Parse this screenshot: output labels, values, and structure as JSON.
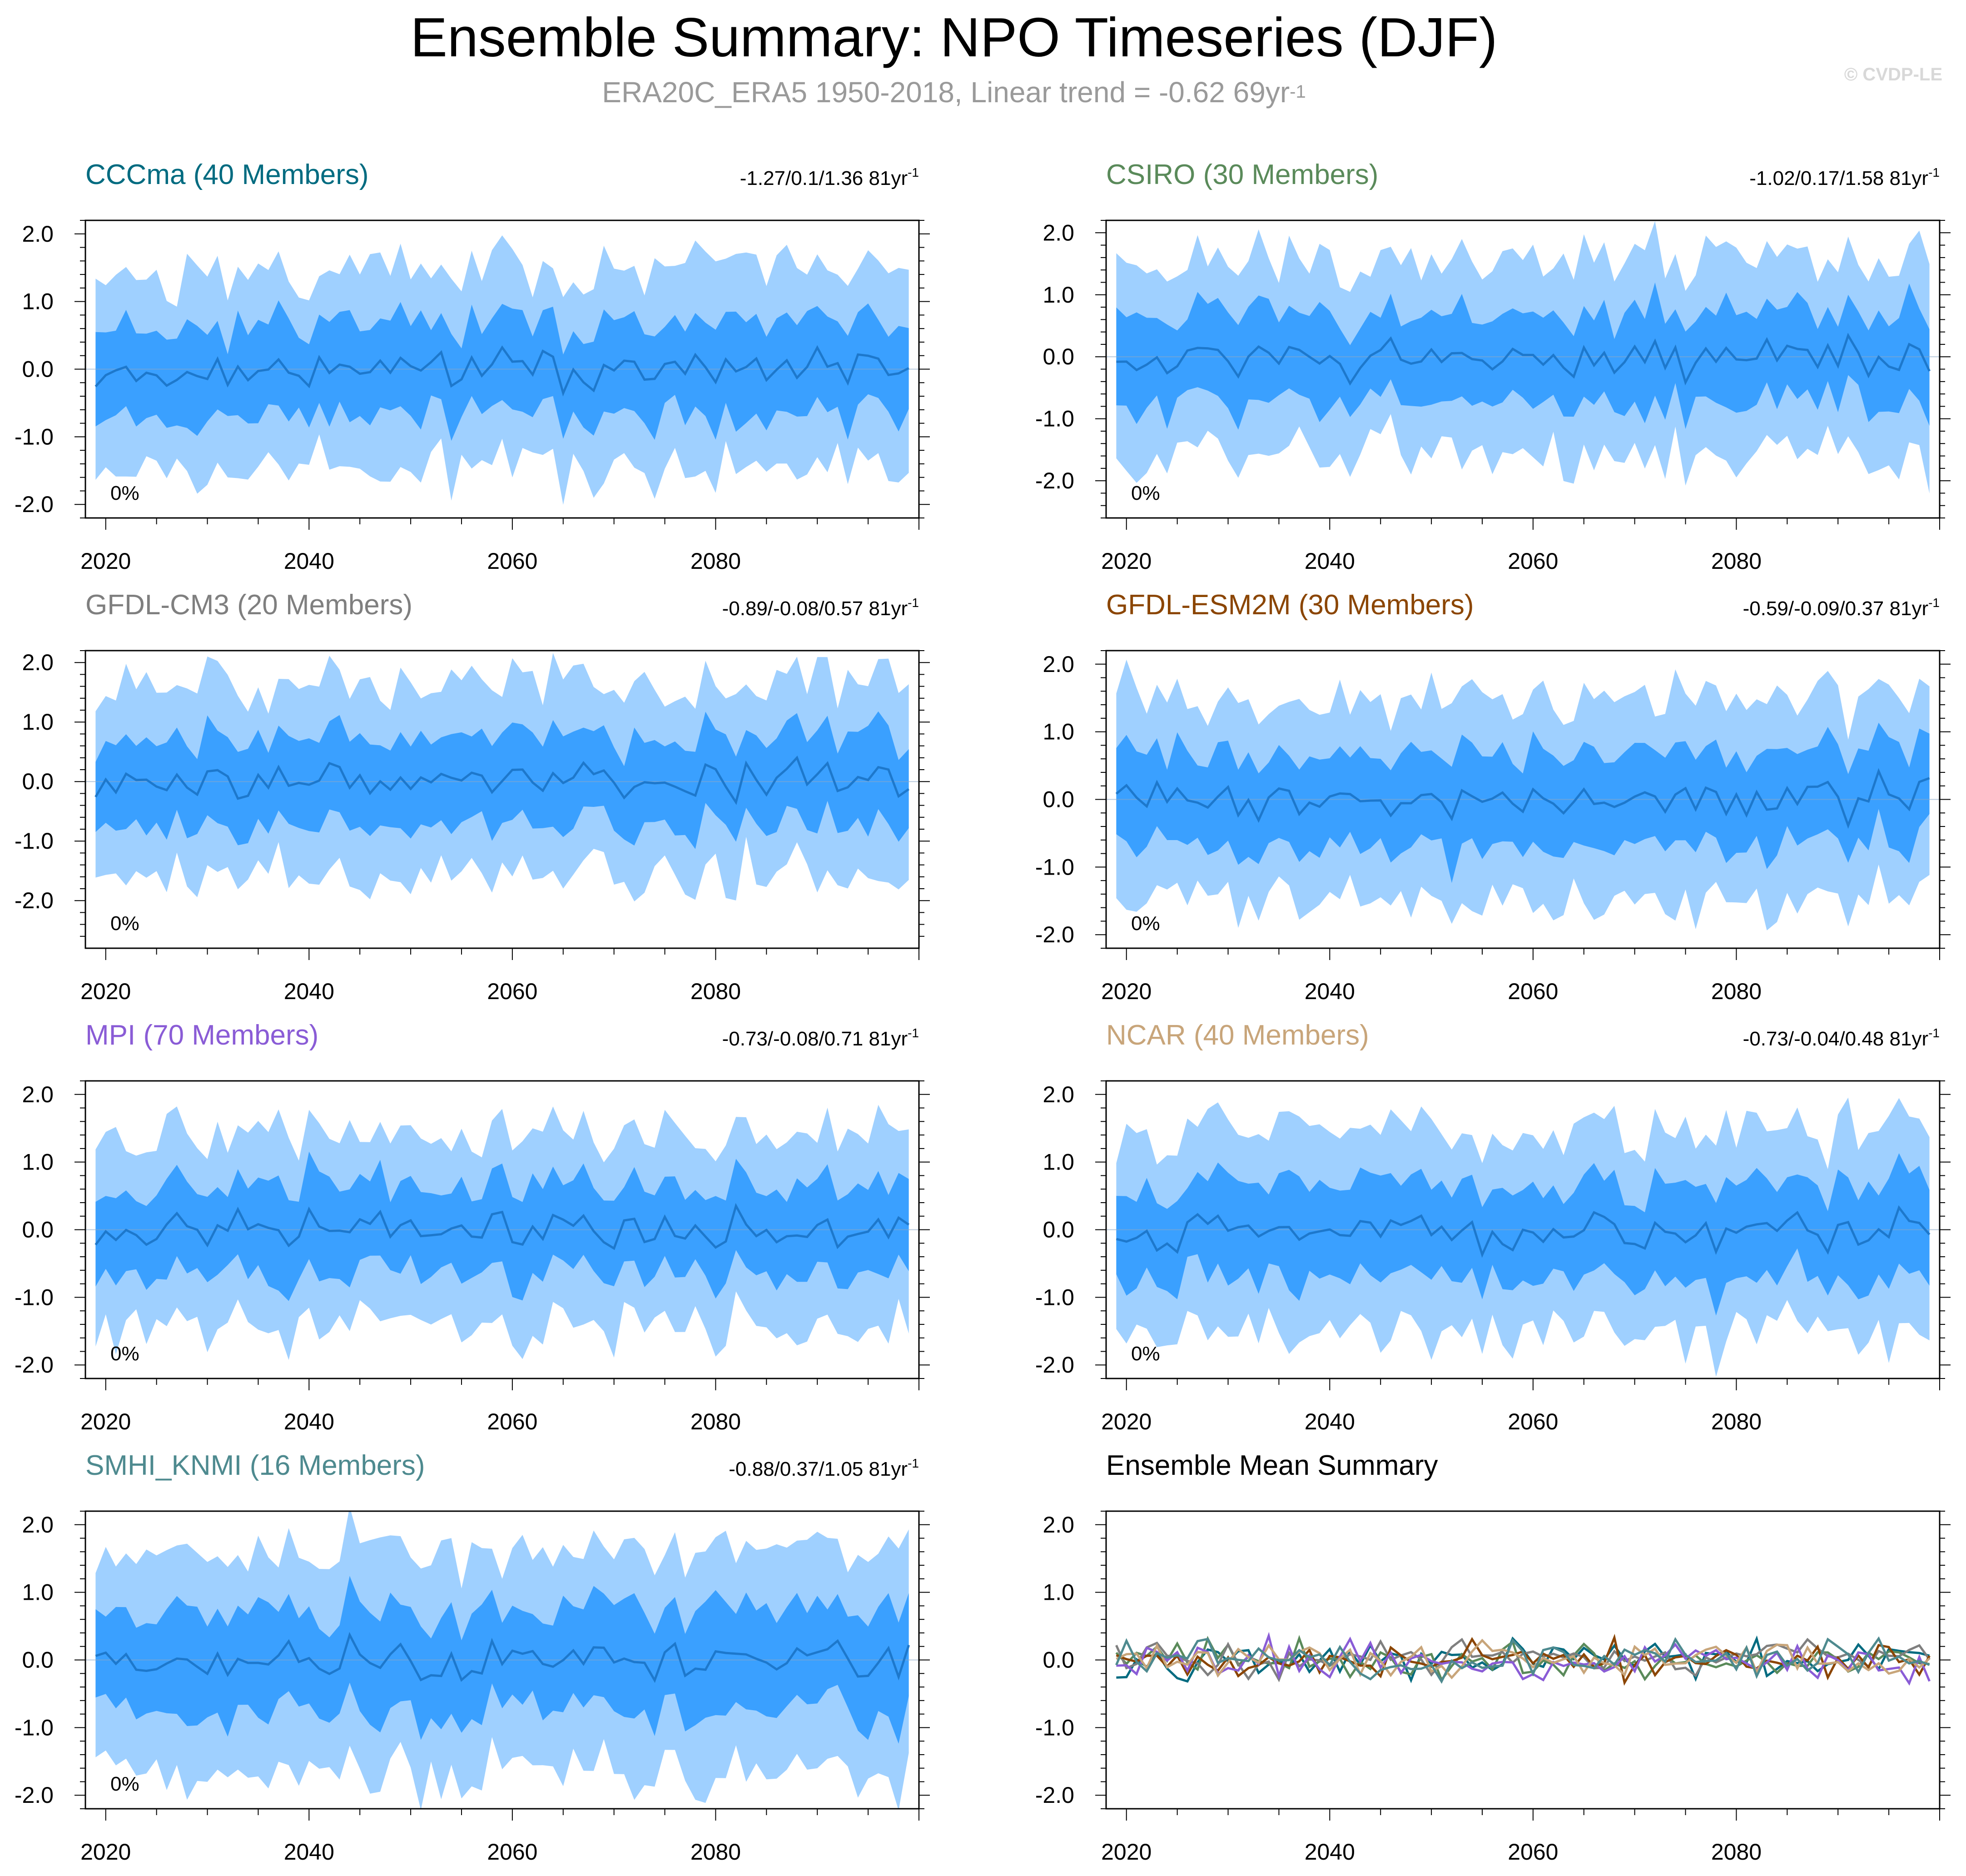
{
  "header": {
    "title": "Ensemble Summary: NPO Timeseries (DJF)",
    "subtitle_prefix": "ERA20C_ERA5 1950-2018, Linear trend = -0.62 69yr",
    "subtitle_sup": "-1",
    "copyright": "© CVDP-LE"
  },
  "chart_data": [
    {
      "type": "area",
      "title": "CCCma (40 Members)",
      "title_color": "#006b80",
      "trend_text": "-1.27/0.1/1.36 81yr",
      "trend_sup": "-1",
      "annotation": "0%",
      "xlim": [
        2018,
        2100
      ],
      "ylim": [
        -2.2,
        2.2
      ],
      "xticks": [
        2020,
        2040,
        2060,
        2080
      ],
      "yticks": [
        2.0,
        1.0,
        0.0,
        -1.0,
        -2.0
      ],
      "ytick_labels": [
        "2.0",
        "1.0",
        "0.0",
        "-1.0",
        "-2.0"
      ],
      "seed": 11,
      "scale": 1.0,
      "bands": [
        {
          "name": "min-max range",
          "color": "#9fd0ff"
        },
        {
          "name": "interquartile range",
          "color": "#3aa0ff"
        },
        {
          "name": "ensemble mean",
          "color": "#1d78cc"
        }
      ]
    },
    {
      "type": "area",
      "title": "CSIRO (30 Members)",
      "title_color": "#5a8a5a",
      "trend_text": "-1.02/0.17/1.58 81yr",
      "trend_sup": "-1",
      "annotation": "0%",
      "xlim": [
        2018,
        2100
      ],
      "ylim": [
        -2.6,
        2.2
      ],
      "xticks": [
        2020,
        2040,
        2060,
        2080
      ],
      "yticks": [
        2.0,
        1.0,
        0.0,
        -1.0,
        -2.0
      ],
      "ytick_labels": [
        "2.0",
        "1.0",
        "0.0",
        "-1.0",
        "-2.0"
      ],
      "seed": 23,
      "scale": 1.1,
      "bands": [
        {
          "name": "min-max range",
          "color": "#9fd0ff"
        },
        {
          "name": "interquartile range",
          "color": "#3aa0ff"
        },
        {
          "name": "ensemble mean",
          "color": "#1d78cc"
        }
      ]
    },
    {
      "type": "area",
      "title": "GFDL-CM3 (20 Members)",
      "title_color": "#7f7f7f",
      "trend_text": "-0.89/-0.08/0.57 81yr",
      "trend_sup": "-1",
      "annotation": "0%",
      "xlim": [
        2018,
        2100
      ],
      "ylim": [
        -2.8,
        2.2
      ],
      "xticks": [
        2020,
        2040,
        2060,
        2080
      ],
      "yticks": [
        2.0,
        1.0,
        0.0,
        -1.0,
        -2.0
      ],
      "ytick_labels": [
        "2.0",
        "1.0",
        "0.0",
        "-1.0",
        "-2.0"
      ],
      "seed": 37,
      "scale": 1.15,
      "bands": [
        {
          "name": "min-max range",
          "color": "#9fd0ff"
        },
        {
          "name": "interquartile range",
          "color": "#3aa0ff"
        },
        {
          "name": "ensemble mean",
          "color": "#1d78cc"
        }
      ]
    },
    {
      "type": "area",
      "title": "GFDL-ESM2M (30 Members)",
      "title_color": "#8b4500",
      "trend_text": "-0.59/-0.09/0.37 81yr",
      "trend_sup": "-1",
      "annotation": "0%",
      "xlim": [
        2018,
        2100
      ],
      "ylim": [
        -2.2,
        2.2
      ],
      "xticks": [
        2020,
        2040,
        2060,
        2080
      ],
      "yticks": [
        2.0,
        1.0,
        0.0,
        -1.0,
        -2.0
      ],
      "ytick_labels": [
        "2.0",
        "1.0",
        "0.0",
        "-1.0",
        "-2.0"
      ],
      "seed": 41,
      "scale": 1.05,
      "bands": [
        {
          "name": "min-max range",
          "color": "#9fd0ff"
        },
        {
          "name": "interquartile range",
          "color": "#3aa0ff"
        },
        {
          "name": "ensemble mean",
          "color": "#1d78cc"
        }
      ]
    },
    {
      "type": "area",
      "title": "MPI (70 Members)",
      "title_color": "#8a5cd6",
      "trend_text": "-0.73/-0.08/0.71 81yr",
      "trend_sup": "-1",
      "annotation": "0%",
      "xlim": [
        2018,
        2100
      ],
      "ylim": [
        -2.2,
        2.2
      ],
      "xticks": [
        2020,
        2040,
        2060,
        2080
      ],
      "yticks": [
        2.0,
        1.0,
        0.0,
        -1.0,
        -2.0
      ],
      "ytick_labels": [
        "2.0",
        "1.0",
        "0.0",
        "-1.0",
        "-2.0"
      ],
      "seed": 53,
      "scale": 1.0,
      "bands": [
        {
          "name": "min-max range",
          "color": "#9fd0ff"
        },
        {
          "name": "interquartile range",
          "color": "#3aa0ff"
        },
        {
          "name": "ensemble mean",
          "color": "#1d78cc"
        }
      ]
    },
    {
      "type": "area",
      "title": "NCAR (40 Members)",
      "title_color": "#c8a57a",
      "trend_text": "-0.73/-0.04/0.48 81yr",
      "trend_sup": "-1",
      "annotation": "0%",
      "xlim": [
        2018,
        2100
      ],
      "ylim": [
        -2.2,
        2.2
      ],
      "xticks": [
        2020,
        2040,
        2060,
        2080
      ],
      "yticks": [
        2.0,
        1.0,
        0.0,
        -1.0,
        -2.0
      ],
      "ytick_labels": [
        "2.0",
        "1.0",
        "0.0",
        "-1.0",
        "-2.0"
      ],
      "seed": 67,
      "scale": 1.05,
      "bands": [
        {
          "name": "min-max range",
          "color": "#9fd0ff"
        },
        {
          "name": "interquartile range",
          "color": "#3aa0ff"
        },
        {
          "name": "ensemble mean",
          "color": "#1d78cc"
        }
      ]
    },
    {
      "type": "area",
      "title": "SMHI_KNMI (16 Members)",
      "title_color": "#4e8a8f",
      "trend_text": "-0.88/0.37/1.05 81yr",
      "trend_sup": "-1",
      "annotation": "0%",
      "xlim": [
        2018,
        2100
      ],
      "ylim": [
        -2.2,
        2.2
      ],
      "xticks": [
        2020,
        2040,
        2060,
        2080
      ],
      "yticks": [
        2.0,
        1.0,
        0.0,
        -1.0,
        -2.0
      ],
      "ytick_labels": [
        "2.0",
        "1.0",
        "0.0",
        "-1.0",
        "-2.0"
      ],
      "seed": 79,
      "scale": 1.15,
      "bands": [
        {
          "name": "min-max range",
          "color": "#9fd0ff"
        },
        {
          "name": "interquartile range",
          "color": "#3aa0ff"
        },
        {
          "name": "ensemble mean",
          "color": "#1d78cc"
        }
      ]
    },
    {
      "type": "line",
      "title": "Ensemble Mean Summary",
      "title_color": "#000000",
      "trend_text": "",
      "trend_sup": "",
      "annotation": "",
      "xlim": [
        2018,
        2100
      ],
      "ylim": [
        -2.2,
        2.2
      ],
      "xticks": [
        2020,
        2040,
        2060,
        2080
      ],
      "yticks": [
        2.0,
        1.0,
        0.0,
        -1.0,
        -2.0
      ],
      "ytick_labels": [
        "2.0",
        "1.0",
        "0.0",
        "-1.0",
        "-2.0"
      ],
      "seed": 97,
      "scale": 1.0,
      "series": [
        {
          "name": "CCCma",
          "color": "#006b80"
        },
        {
          "name": "CSIRO",
          "color": "#5a8a5a"
        },
        {
          "name": "GFDL-CM3",
          "color": "#7f7f7f"
        },
        {
          "name": "GFDL-ESM2M",
          "color": "#8b4500"
        },
        {
          "name": "MPI",
          "color": "#8a5cd6"
        },
        {
          "name": "NCAR",
          "color": "#c8a57a"
        },
        {
          "name": "SMHI_KNMI",
          "color": "#4e8a8f"
        }
      ]
    }
  ]
}
